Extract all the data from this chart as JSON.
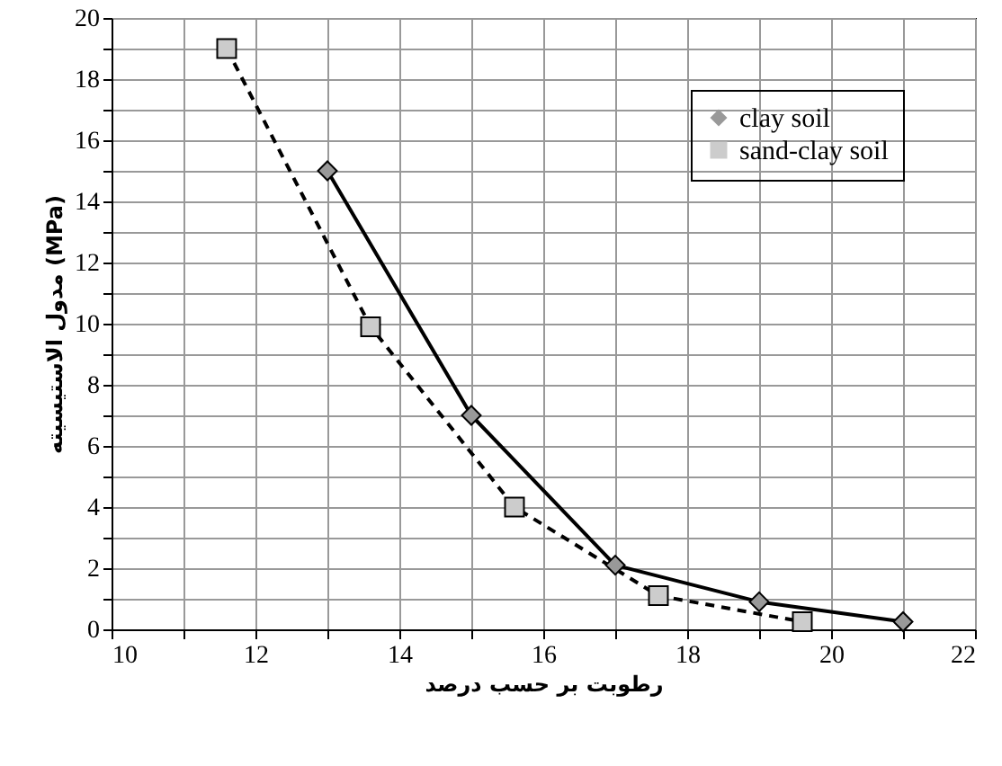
{
  "chart_data": {
    "type": "line",
    "xlabel": "رطوبت بر حسب درصد",
    "ylabel": "مدول الاستیسیته (MPa)",
    "legend": "top right",
    "grid": true,
    "xlim": [
      10,
      22
    ],
    "ylim": [
      0,
      20
    ],
    "xticks": [
      10,
      {
        "value": 11,
        "label": null
      },
      12,
      {
        "value": 13,
        "label": null
      },
      14,
      {
        "value": 15,
        "label": null
      },
      16,
      {
        "value": 17,
        "label": null
      },
      18,
      {
        "value": 19,
        "label": null
      },
      20,
      {
        "value": 21,
        "label": null
      },
      22
    ],
    "yticks": [
      0,
      {
        "value": 1,
        "label": null
      },
      2,
      {
        "value": 3,
        "label": null
      },
      4,
      {
        "value": 5,
        "label": null
      },
      6,
      {
        "value": 7,
        "label": null
      },
      8,
      {
        "value": 9,
        "label": null
      },
      10,
      {
        "value": 11,
        "label": null
      },
      12,
      {
        "value": 13,
        "label": null
      },
      14,
      {
        "value": 15,
        "label": null
      },
      16,
      {
        "value": 17,
        "label": null
      },
      18,
      {
        "value": 19,
        "label": null
      },
      20
    ],
    "series": [
      {
        "name": "clay soil",
        "color": "#999999",
        "marker": "diamond",
        "line_style": "solid",
        "x": [
          13,
          15,
          17,
          19,
          21
        ],
        "values": [
          15,
          7,
          2.1,
          0.9,
          0.25
        ]
      },
      {
        "name": "sand-clay soil",
        "color": "#cccccc",
        "marker": "square",
        "line_style": "dashed",
        "x": [
          11.6,
          13.6,
          15.6,
          17.6,
          19.6
        ],
        "values": [
          19,
          9.9,
          4,
          1.1,
          0.25
        ]
      }
    ]
  }
}
